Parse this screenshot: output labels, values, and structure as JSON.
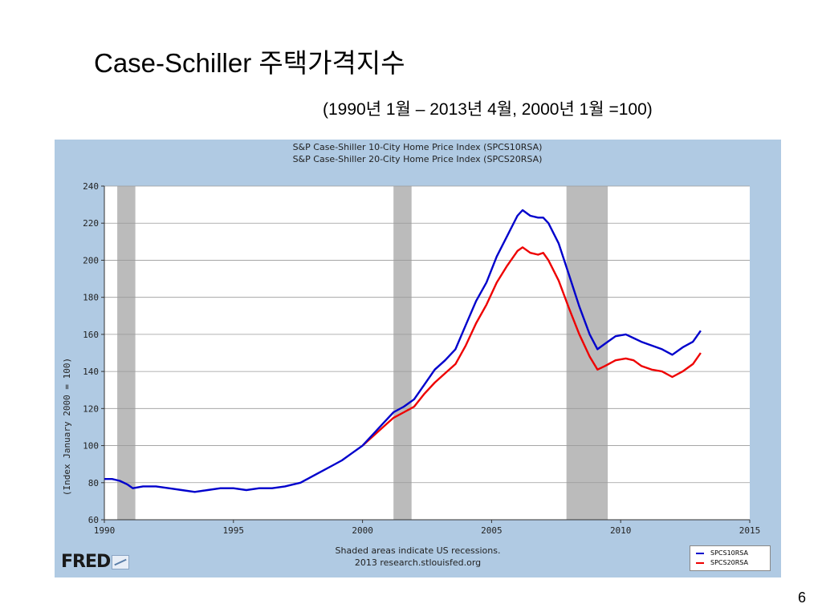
{
  "slide": {
    "title": "Case-Schiller 주택가격지수",
    "subtitle": "(1990년 1월 –  2013년 4월,   2000년 1월 =100)",
    "page_number": "6"
  },
  "colors": {
    "series_10": "#0000cc",
    "series_20": "#ee0000",
    "recession": "#bbbbbb",
    "panel": "#b0cae3"
  },
  "footer": {
    "brand": "FRED",
    "note_line1": "Shaded areas indicate US recessions.",
    "note_line2": "2013 research.stlouisfed.org"
  },
  "chart_data": {
    "type": "line",
    "title": "S&P Case-Shiller 10-City Home Price Index (SPCS10RSA)",
    "subtitle": "S&P Case-Shiller 20-City Home Price Index (SPCS20RSA)",
    "xlabel": "",
    "ylabel": "(Index January 2000 = 100)",
    "xlim": [
      1990,
      2015
    ],
    "ylim": [
      60,
      240
    ],
    "x_ticks": [
      "1990",
      "1995",
      "2000",
      "2005",
      "2010",
      "2015"
    ],
    "y_ticks": [
      "60",
      "80",
      "100",
      "120",
      "140",
      "160",
      "180",
      "200",
      "220",
      "240"
    ],
    "grid": true,
    "legend_position": "bottom-right",
    "recessions": [
      [
        1990.5,
        1991.2
      ],
      [
        2001.2,
        2001.9
      ],
      [
        2007.9,
        2009.5
      ]
    ],
    "series": [
      {
        "name": "SPCS10RSA",
        "x": [
          1990.0,
          1990.3,
          1990.6,
          1990.9,
          1991.1,
          1991.5,
          1992.0,
          1992.5,
          1993.0,
          1993.5,
          1994.0,
          1994.5,
          1995.0,
          1995.5,
          1996.0,
          1996.5,
          1997.0,
          1997.3,
          1997.6,
          1998.0,
          1998.4,
          1998.8,
          1999.2,
          1999.6,
          2000.0,
          2000.4,
          2000.8,
          2001.2,
          2001.6,
          2002.0,
          2002.4,
          2002.8,
          2003.2,
          2003.6,
          2004.0,
          2004.4,
          2004.8,
          2005.2,
          2005.6,
          2006.0,
          2006.2,
          2006.5,
          2006.8,
          2007.0,
          2007.2,
          2007.6,
          2008.0,
          2008.4,
          2008.8,
          2009.1,
          2009.4,
          2009.8,
          2010.2,
          2010.5,
          2010.8,
          2011.2,
          2011.6,
          2012.0,
          2012.4,
          2012.8,
          2013.1
        ],
        "values": [
          82,
          82,
          81,
          79,
          77,
          78,
          78,
          77,
          76,
          75,
          76,
          77,
          77,
          76,
          77,
          77,
          78,
          79,
          80,
          83,
          86,
          89,
          92,
          96,
          100,
          106,
          112,
          118,
          121,
          125,
          133,
          141,
          146,
          152,
          165,
          178,
          188,
          202,
          213,
          224,
          227,
          224,
          223,
          223,
          220,
          209,
          192,
          175,
          160,
          152,
          155,
          159,
          160,
          158,
          156,
          154,
          152,
          149,
          153,
          156,
          162
        ]
      },
      {
        "name": "SPCS20RSA",
        "x": [
          2000.0,
          2000.4,
          2000.8,
          2001.2,
          2001.6,
          2002.0,
          2002.4,
          2002.8,
          2003.2,
          2003.6,
          2004.0,
          2004.4,
          2004.8,
          2005.2,
          2005.6,
          2006.0,
          2006.2,
          2006.5,
          2006.8,
          2007.0,
          2007.2,
          2007.6,
          2008.0,
          2008.4,
          2008.8,
          2009.1,
          2009.4,
          2009.8,
          2010.2,
          2010.5,
          2010.8,
          2011.2,
          2011.6,
          2012.0,
          2012.4,
          2012.8,
          2013.1
        ],
        "values": [
          100,
          105,
          110,
          115,
          118,
          121,
          128,
          134,
          139,
          144,
          154,
          166,
          176,
          188,
          197,
          205,
          207,
          204,
          203,
          204,
          200,
          189,
          174,
          160,
          148,
          141,
          143,
          146,
          147,
          146,
          143,
          141,
          140,
          137,
          140,
          144,
          150
        ]
      }
    ]
  }
}
